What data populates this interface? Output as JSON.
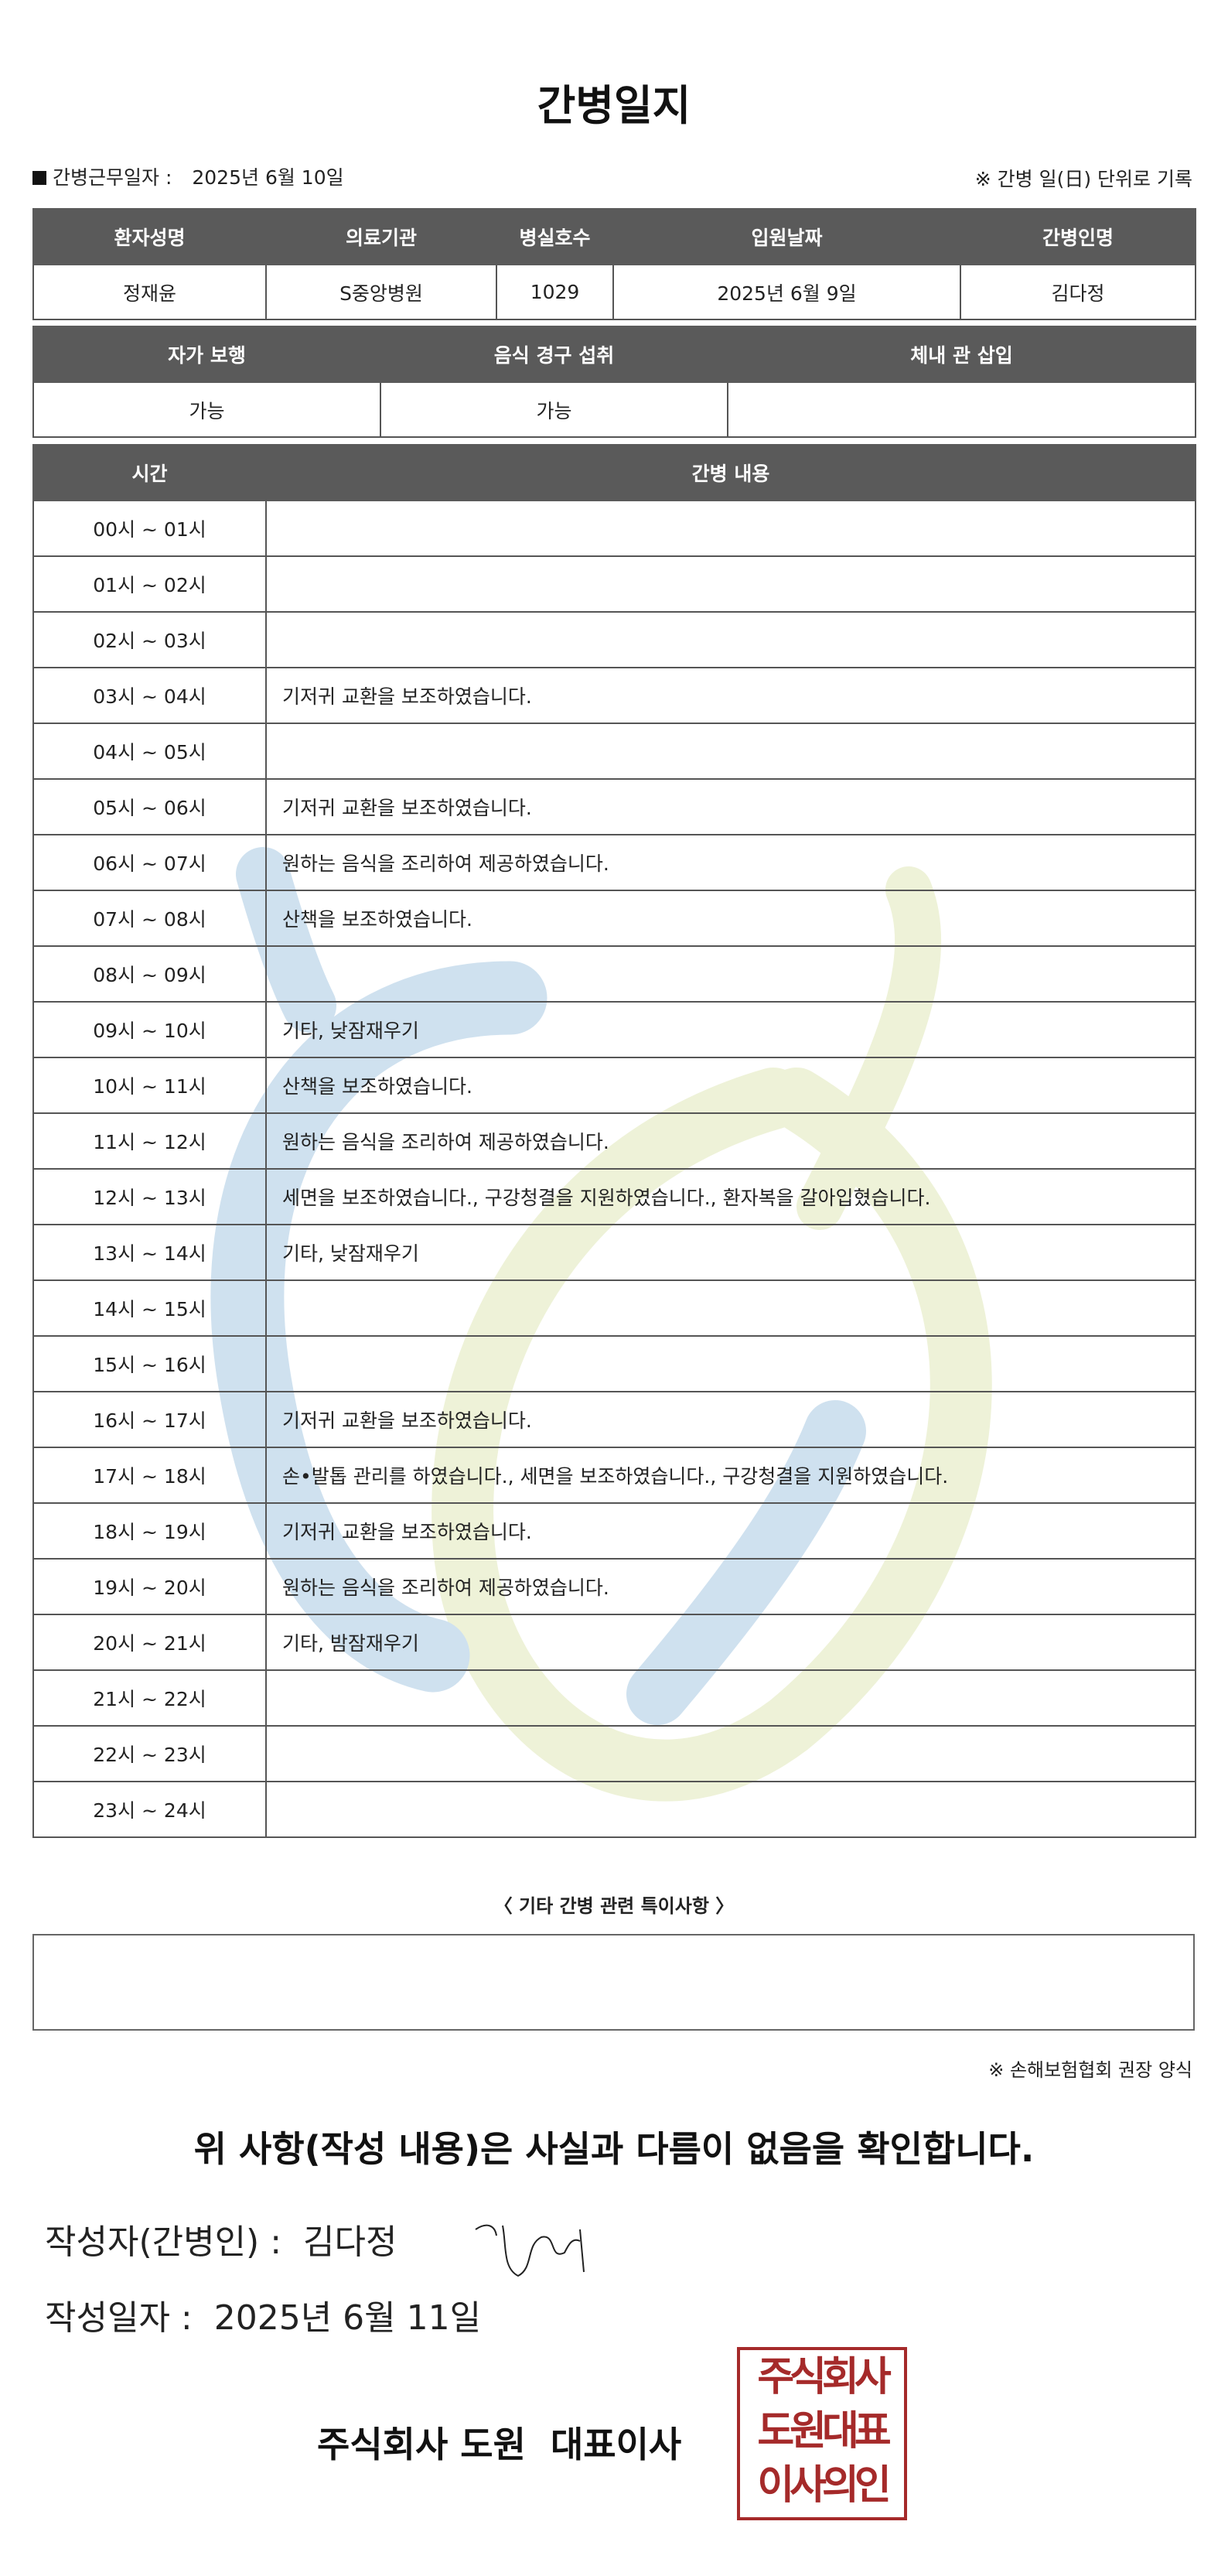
{
  "title": "간병일지",
  "info": {
    "work_date_label": "간병근무일자 :",
    "work_date": "2025년 6월 10일",
    "unit_note": "※ 간병 일(日) 단위로 기록"
  },
  "patient_table": {
    "headers": [
      "환자성명",
      "의료기관",
      "병실호수",
      "입원날짜",
      "간병인명"
    ],
    "values": [
      "정재윤",
      "S중앙병원",
      "1029",
      "2025년 6월 9일",
      "김다정"
    ]
  },
  "status_table": {
    "headers": [
      "자가 보행",
      "음식 경구 섭취",
      "체내 관 삽입"
    ],
    "values": [
      "가능",
      "가능",
      ""
    ]
  },
  "log_table": {
    "headers": [
      "시간",
      "간병 내용"
    ],
    "rows": [
      {
        "time": "00시 ~ 01시",
        "content": ""
      },
      {
        "time": "01시 ~ 02시",
        "content": ""
      },
      {
        "time": "02시 ~ 03시",
        "content": ""
      },
      {
        "time": "03시 ~ 04시",
        "content": "기저귀 교환을 보조하였습니다."
      },
      {
        "time": "04시 ~ 05시",
        "content": ""
      },
      {
        "time": "05시 ~ 06시",
        "content": "기저귀 교환을 보조하였습니다."
      },
      {
        "time": "06시 ~ 07시",
        "content": "원하는 음식을 조리하여 제공하였습니다."
      },
      {
        "time": "07시 ~ 08시",
        "content": "산책을 보조하였습니다."
      },
      {
        "time": "08시 ~ 09시",
        "content": ""
      },
      {
        "time": "09시 ~ 10시",
        "content": "기타, 낮잠재우기"
      },
      {
        "time": "10시 ~ 11시",
        "content": "산책을 보조하였습니다."
      },
      {
        "time": "11시 ~ 12시",
        "content": "원하는 음식을 조리하여 제공하였습니다."
      },
      {
        "time": "12시 ~ 13시",
        "content": "세면을 보조하였습니다., 구강청결을 지원하였습니다., 환자복을 갈아입혔습니다."
      },
      {
        "time": "13시 ~ 14시",
        "content": "기타, 낮잠재우기"
      },
      {
        "time": "14시 ~ 15시",
        "content": ""
      },
      {
        "time": "15시 ~ 16시",
        "content": ""
      },
      {
        "time": "16시 ~ 17시",
        "content": "기저귀 교환을 보조하였습니다."
      },
      {
        "time": "17시 ~ 18시",
        "content": "손•발톱 관리를 하였습니다., 세면을 보조하였습니다., 구강청결을 지원하였습니다."
      },
      {
        "time": "18시 ~ 19시",
        "content": "기저귀 교환을 보조하였습니다."
      },
      {
        "time": "19시 ~ 20시",
        "content": "원하는 음식을 조리하여 제공하였습니다."
      },
      {
        "time": "20시 ~ 21시",
        "content": "기타, 밤잠재우기"
      },
      {
        "time": "21시 ~ 22시",
        "content": ""
      },
      {
        "time": "22시 ~ 23시",
        "content": ""
      },
      {
        "time": "23시 ~ 24시",
        "content": ""
      }
    ]
  },
  "notes": {
    "label": "〈 기타 간병 관련 특이사항 〉",
    "value": ""
  },
  "source_note": "※ 손해보험협회 권장 양식",
  "confirm_text": "위 사항(작성 내용)은 사실과 다름이 없음을 확인합니다.",
  "writer": {
    "label": "작성자(간병인) :",
    "name": "김다정"
  },
  "written_date": {
    "label": "작성일자 :",
    "value": "2025년 6월 11일"
  },
  "company": "주식회사 도원  대표이사",
  "stamp_text": [
    "주식회사",
    "도원대표",
    "이사의인"
  ],
  "colors": {
    "header_bg": "#5a5a5a",
    "stamp": "#a52a2a",
    "watermark_blue": "#cfe1ef",
    "watermark_yellow": "#eef2d8"
  }
}
